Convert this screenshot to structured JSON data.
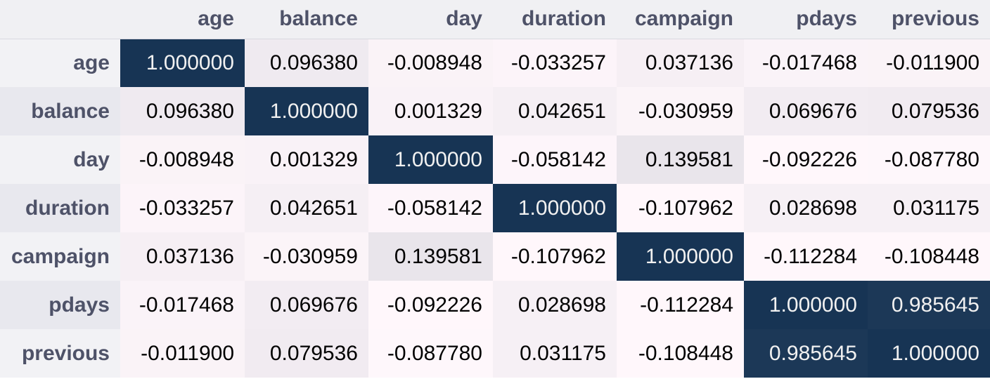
{
  "chart_data": {
    "type": "heatmap",
    "title": "",
    "columns": [
      "age",
      "balance",
      "day",
      "duration",
      "campaign",
      "pdays",
      "previous"
    ],
    "rows": [
      "age",
      "balance",
      "day",
      "duration",
      "campaign",
      "pdays",
      "previous"
    ],
    "values": [
      [
        "1.000000",
        "0.096380",
        "-0.008948",
        "-0.033257",
        "0.037136",
        "-0.017468",
        "-0.011900"
      ],
      [
        "0.096380",
        "1.000000",
        "0.001329",
        "0.042651",
        "-0.030959",
        "0.069676",
        "0.079536"
      ],
      [
        "-0.008948",
        "0.001329",
        "1.000000",
        "-0.058142",
        "0.139581",
        "-0.092226",
        "-0.087780"
      ],
      [
        "-0.033257",
        "0.042651",
        "-0.058142",
        "1.000000",
        "-0.107962",
        "0.028698",
        "0.031175"
      ],
      [
        "0.037136",
        "-0.030959",
        "0.139581",
        "-0.107962",
        "1.000000",
        "-0.112284",
        "-0.108448"
      ],
      [
        "-0.017468",
        "0.069676",
        "-0.092226",
        "0.028698",
        "-0.112284",
        "1.000000",
        "0.985645"
      ],
      [
        "-0.011900",
        "0.079536",
        "-0.087780",
        "0.031175",
        "-0.108448",
        "0.985645",
        "1.000000"
      ]
    ],
    "color_scale": {
      "low": "#fff7fb",
      "high": "#173454",
      "text_dark": "#000000",
      "text_light": "#f1f1f1"
    }
  }
}
